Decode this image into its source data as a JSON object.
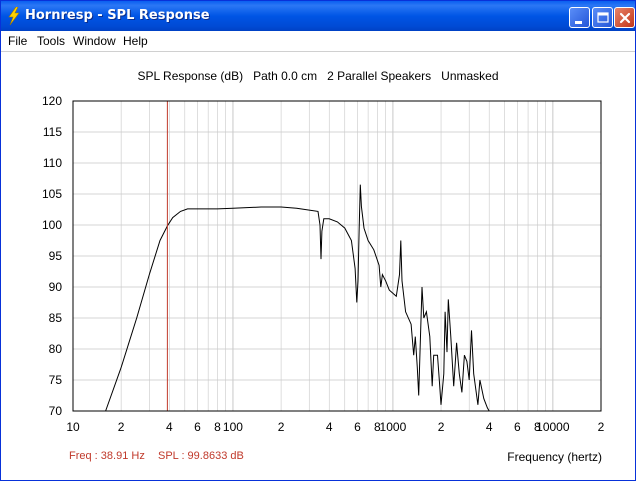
{
  "window": {
    "title": "Hornresp - SPL Response"
  },
  "menu": {
    "items": [
      "File",
      "Tools",
      "Window",
      "Help"
    ]
  },
  "chart_header": "SPL Response (dB)   Path 0.0 cm   2 Parallel Speakers   Unmasked",
  "readout": {
    "freq": "Freq : 38.91 Hz",
    "spl": "SPL : 99.8633 dB"
  },
  "colors": {
    "cursor": "#c0392b",
    "trace": "#000000",
    "grid": "#c8c8c8",
    "titlebar": "#0055e5"
  },
  "chart_data": {
    "type": "line",
    "title": "SPL Response (dB)   Path 0.0 cm   2 Parallel Speakers   Unmasked",
    "xlabel": "Frequency (hertz)",
    "ylabel": "",
    "x_scale": "log",
    "xlim": [
      10,
      20000
    ],
    "ylim": [
      70,
      120
    ],
    "grid": true,
    "y_ticks": [
      120,
      115,
      110,
      105,
      100,
      95,
      90,
      85,
      80,
      75,
      70
    ],
    "x_tick_labels": [
      {
        "x": 10,
        "label": "10"
      },
      {
        "x": 20,
        "label": "2"
      },
      {
        "x": 40,
        "label": "4"
      },
      {
        "x": 60,
        "label": "6"
      },
      {
        "x": 80,
        "label": "8"
      },
      {
        "x": 100,
        "label": "100"
      },
      {
        "x": 200,
        "label": "2"
      },
      {
        "x": 400,
        "label": "4"
      },
      {
        "x": 600,
        "label": "6"
      },
      {
        "x": 800,
        "label": "8"
      },
      {
        "x": 1000,
        "label": "1000"
      },
      {
        "x": 2000,
        "label": "2"
      },
      {
        "x": 4000,
        "label": "4"
      },
      {
        "x": 6000,
        "label": "6"
      },
      {
        "x": 8000,
        "label": "8"
      },
      {
        "x": 10000,
        "label": "10000"
      },
      {
        "x": 20000,
        "label": "2"
      }
    ],
    "cursor": {
      "x": 38.91,
      "y": 99.8633
    },
    "series": [
      {
        "points": [
          [
            16,
            70
          ],
          [
            20,
            77
          ],
          [
            25,
            85
          ],
          [
            30,
            92
          ],
          [
            35,
            97.5
          ],
          [
            38.91,
            99.86
          ],
          [
            42,
            101.2
          ],
          [
            47,
            102.2
          ],
          [
            52,
            102.6
          ],
          [
            60,
            102.6
          ],
          [
            80,
            102.6
          ],
          [
            100,
            102.7
          ],
          [
            150,
            102.9
          ],
          [
            200,
            102.9
          ],
          [
            250,
            102.7
          ],
          [
            300,
            102.4
          ],
          [
            340,
            102.2
          ],
          [
            350,
            100
          ],
          [
            355,
            94.5
          ],
          [
            360,
            99
          ],
          [
            370,
            101
          ],
          [
            400,
            101
          ],
          [
            450,
            100.5
          ],
          [
            500,
            99.5
          ],
          [
            550,
            97.5
          ],
          [
            580,
            93
          ],
          [
            595,
            87.5
          ],
          [
            605,
            91
          ],
          [
            615,
            99
          ],
          [
            625,
            106.5
          ],
          [
            635,
            103
          ],
          [
            660,
            99.5
          ],
          [
            700,
            97.5
          ],
          [
            760,
            96
          ],
          [
            820,
            93.5
          ],
          [
            840,
            90
          ],
          [
            860,
            92
          ],
          [
            900,
            91
          ],
          [
            950,
            89.5
          ],
          [
            1050,
            88.5
          ],
          [
            1100,
            92
          ],
          [
            1120,
            97.5
          ],
          [
            1140,
            91
          ],
          [
            1200,
            86
          ],
          [
            1300,
            84
          ],
          [
            1350,
            79
          ],
          [
            1380,
            82
          ],
          [
            1420,
            77
          ],
          [
            1450,
            72.5
          ],
          [
            1480,
            80
          ],
          [
            1520,
            90
          ],
          [
            1560,
            85
          ],
          [
            1620,
            86
          ],
          [
            1700,
            82
          ],
          [
            1760,
            74
          ],
          [
            1800,
            79
          ],
          [
            1900,
            79
          ],
          [
            1950,
            75
          ],
          [
            2000,
            71
          ],
          [
            2080,
            76
          ],
          [
            2120,
            86
          ],
          [
            2180,
            79.5
          ],
          [
            2220,
            88
          ],
          [
            2300,
            82
          ],
          [
            2400,
            74
          ],
          [
            2500,
            81
          ],
          [
            2600,
            76
          ],
          [
            2700,
            73
          ],
          [
            2800,
            79
          ],
          [
            2900,
            78
          ],
          [
            3000,
            75
          ],
          [
            3100,
            83
          ],
          [
            3200,
            76
          ],
          [
            3300,
            73.5
          ],
          [
            3400,
            71
          ],
          [
            3500,
            75
          ],
          [
            3700,
            72
          ],
          [
            3900,
            70.5
          ],
          [
            4000,
            70
          ]
        ]
      }
    ]
  }
}
